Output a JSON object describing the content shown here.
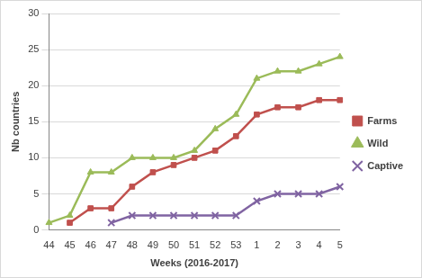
{
  "chart_data": {
    "type": "line",
    "x_label": "Weeks (2016-2017)",
    "y_label": "Nb countries",
    "categories": [
      "44",
      "45",
      "46",
      "47",
      "48",
      "49",
      "50",
      "51",
      "52",
      "53",
      "1",
      "2",
      "3",
      "4",
      "5"
    ],
    "series": [
      {
        "name": "Farms",
        "color": "#c0504d",
        "marker": "square",
        "values": [
          null,
          1,
          3,
          3,
          6,
          8,
          9,
          10,
          11,
          13,
          16,
          17,
          17,
          18,
          18
        ]
      },
      {
        "name": "Wild",
        "color": "#9bbb59",
        "marker": "triangle",
        "values": [
          1,
          2,
          8,
          8,
          10,
          10,
          10,
          11,
          14,
          16,
          21,
          22,
          22,
          23,
          24
        ]
      },
      {
        "name": "Captive",
        "color": "#8064a2",
        "marker": "x",
        "values": [
          null,
          null,
          null,
          1,
          2,
          2,
          2,
          2,
          2,
          2,
          4,
          5,
          5,
          5,
          6
        ]
      }
    ],
    "ylim": [
      0,
      30
    ],
    "yticks": [
      0,
      5,
      10,
      15,
      20,
      25,
      30
    ],
    "grid": true,
    "legend": "right"
  }
}
